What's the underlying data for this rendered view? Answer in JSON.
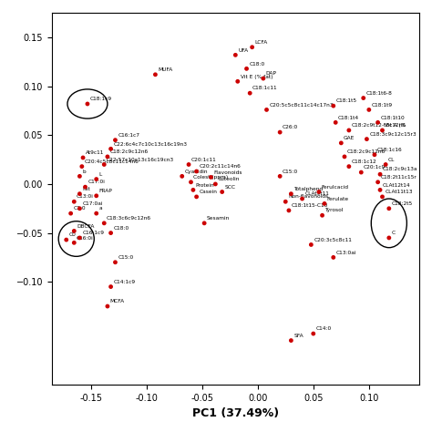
{
  "chart_data": {
    "type": "scatter",
    "xlabel": "PC1 (37.49%)",
    "color": "#cc0000",
    "xlim": [
      -0.185,
      0.145
    ],
    "ylim": [
      -0.205,
      0.175
    ],
    "xticks": [
      {
        "value": -0.15,
        "label": "-0.15"
      },
      {
        "value": -0.1,
        "label": "-0.10"
      },
      {
        "value": -0.05,
        "label": "-0.05"
      },
      {
        "value": 0.0,
        "label": "0.00"
      },
      {
        "value": 0.05,
        "label": "0.05"
      },
      {
        "value": 0.1,
        "label": "0.10"
      }
    ],
    "yticks": [
      {
        "value": -0.1,
        "label": "−0.10"
      },
      {
        "value": -0.05,
        "label": "−0.05"
      },
      {
        "value": 0.0,
        "label": "0.00"
      },
      {
        "value": 0.05,
        "label": "0.05"
      },
      {
        "value": 0.1,
        "label": "0.10"
      },
      {
        "value": 0.15,
        "label": "0.15"
      }
    ],
    "points": [
      {
        "x": -0.153,
        "y": 0.082,
        "label": "C18:1c9"
      },
      {
        "x": -0.128,
        "y": 0.045,
        "label": "C16:1c7"
      },
      {
        "x": -0.132,
        "y": 0.036,
        "label": "C22:6c4c7c10c13c16c19n3"
      },
      {
        "x": -0.135,
        "y": 0.028,
        "label": "C18:2c9c12n6"
      },
      {
        "x": -0.138,
        "y": 0.02,
        "label": "C22:57c10c13c16c19cn3"
      },
      {
        "x": -0.157,
        "y": 0.027,
        "label": "At9c11"
      },
      {
        "x": -0.158,
        "y": 0.018,
        "label": "C20:4c5c8c11c14n6"
      },
      {
        "x": -0.16,
        "y": 0.008,
        "label": "b"
      },
      {
        "x": -0.145,
        "y": 0.005,
        "label": "L"
      },
      {
        "x": -0.155,
        "y": -0.003,
        "label": "C17:0i"
      },
      {
        "x": -0.16,
        "y": -0.01,
        "label": "Fat"
      },
      {
        "x": -0.145,
        "y": -0.012,
        "label": "FRAP"
      },
      {
        "x": -0.165,
        "y": -0.018,
        "label": "C13:0i"
      },
      {
        "x": -0.16,
        "y": -0.025,
        "label": "C17:0ai"
      },
      {
        "x": -0.168,
        "y": -0.03,
        "label": "C2:0"
      },
      {
        "x": -0.145,
        "y": -0.03,
        "label": "a"
      },
      {
        "x": -0.138,
        "y": -0.04,
        "label": "C18:3c6c9c12n6"
      },
      {
        "x": -0.132,
        "y": -0.05,
        "label": "C18:0"
      },
      {
        "x": -0.165,
        "y": -0.048,
        "label": "DBCFA"
      },
      {
        "x": -0.16,
        "y": -0.055,
        "label": "C16:1c9"
      },
      {
        "x": -0.165,
        "y": -0.06,
        "label": "C16:0i"
      },
      {
        "x": -0.172,
        "y": -0.057,
        "label": "C0"
      },
      {
        "x": -0.128,
        "y": -0.08,
        "label": "C15:0"
      },
      {
        "x": -0.132,
        "y": -0.105,
        "label": "C14:1c9"
      },
      {
        "x": -0.135,
        "y": -0.125,
        "label": "MCFA"
      },
      {
        "x": -0.092,
        "y": 0.112,
        "label": "MUFA"
      },
      {
        "x": -0.068,
        "y": 0.008,
        "label": "Cyanidin"
      },
      {
        "x": -0.06,
        "y": 0.002,
        "label": "Colest (ppm)"
      },
      {
        "x": -0.058,
        "y": -0.006,
        "label": "Protein"
      },
      {
        "x": -0.055,
        "y": -0.013,
        "label": "Casein"
      },
      {
        "x": -0.048,
        "y": -0.04,
        "label": "Sesamin"
      },
      {
        "x": -0.062,
        "y": 0.02,
        "label": "C20:1c11"
      },
      {
        "x": -0.055,
        "y": 0.013,
        "label": "C20:2c11c14n6"
      },
      {
        "x": -0.042,
        "y": 0.007,
        "label": "Flavonoids"
      },
      {
        "x": -0.038,
        "y": 0.0,
        "label": "Luteolin"
      },
      {
        "x": -0.032,
        "y": -0.008,
        "label": "SCC"
      },
      {
        "x": -0.02,
        "y": 0.132,
        "label": "UFA"
      },
      {
        "x": -0.005,
        "y": 0.14,
        "label": "LCFA"
      },
      {
        "x": -0.01,
        "y": 0.118,
        "label": "C18:0"
      },
      {
        "x": -0.018,
        "y": 0.105,
        "label": "Vit E (% fat)"
      },
      {
        "x": -0.007,
        "y": 0.093,
        "label": "C18:1c11"
      },
      {
        "x": 0.005,
        "y": 0.108,
        "label": "DAP"
      },
      {
        "x": 0.008,
        "y": 0.076,
        "label": "C20:5c5c8c11c14c17n3"
      },
      {
        "x": 0.02,
        "y": 0.053,
        "label": "C26:0"
      },
      {
        "x": 0.02,
        "y": 0.008,
        "label": "C15:0"
      },
      {
        "x": 0.025,
        "y": -0.018,
        "label": "Non-flavonoids"
      },
      {
        "x": 0.028,
        "y": -0.027,
        "label": "C18:1t15-C10"
      },
      {
        "x": 0.03,
        "y": -0.01,
        "label": "Totalphend"
      },
      {
        "x": 0.04,
        "y": -0.015,
        "label": "CLAt9t11"
      },
      {
        "x": 0.055,
        "y": -0.008,
        "label": "Ferulcacid"
      },
      {
        "x": 0.06,
        "y": -0.02,
        "label": "Ferulate"
      },
      {
        "x": 0.058,
        "y": -0.032,
        "label": "Tyrosol"
      },
      {
        "x": 0.048,
        "y": -0.062,
        "label": "C20:3c5c8c11"
      },
      {
        "x": 0.068,
        "y": -0.075,
        "label": "C13:0ai"
      },
      {
        "x": 0.03,
        "y": -0.16,
        "label": "SFA"
      },
      {
        "x": 0.05,
        "y": -0.153,
        "label": "C14:0"
      },
      {
        "x": 0.068,
        "y": 0.08,
        "label": "C18:1t5"
      },
      {
        "x": 0.07,
        "y": 0.063,
        "label": "C18:1t4"
      },
      {
        "x": 0.082,
        "y": 0.055,
        "label": "C18:2c9t12-t8c12n6"
      },
      {
        "x": 0.075,
        "y": 0.042,
        "label": "GAE"
      },
      {
        "x": 0.078,
        "y": 0.028,
        "label": "C18:2c9c12n6"
      },
      {
        "x": 0.082,
        "y": 0.018,
        "label": "C18:1c12"
      },
      {
        "x": 0.093,
        "y": 0.012,
        "label": "C20:1c9"
      },
      {
        "x": 0.095,
        "y": 0.088,
        "label": "C18:1t6-8"
      },
      {
        "x": 0.1,
        "y": 0.076,
        "label": "C18:1t9"
      },
      {
        "x": 0.108,
        "y": 0.063,
        "label": "C18:1t10"
      },
      {
        "x": 0.112,
        "y": 0.055,
        "label": "Vit A (%"
      },
      {
        "x": 0.098,
        "y": 0.046,
        "label": "C18:3c9c12c15r3"
      },
      {
        "x": 0.105,
        "y": 0.03,
        "label": "C18:1c16"
      },
      {
        "x": 0.115,
        "y": 0.02,
        "label": "CL"
      },
      {
        "x": 0.11,
        "y": 0.01,
        "label": "C18:2c9c13a"
      },
      {
        "x": 0.108,
        "y": 0.002,
        "label": "C18:2t11c15r"
      },
      {
        "x": 0.11,
        "y": -0.006,
        "label": "CLAt12t14"
      },
      {
        "x": 0.112,
        "y": -0.013,
        "label": "CLAt11t13"
      },
      {
        "x": 0.118,
        "y": -0.025,
        "label": "C18:2t5"
      },
      {
        "x": 0.118,
        "y": -0.055,
        "label": "C"
      }
    ],
    "ellipses": [
      {
        "cx": -0.153,
        "cy": 0.082,
        "rx": 0.018,
        "ry": 0.015
      },
      {
        "cx": -0.163,
        "cy": -0.056,
        "rx": 0.016,
        "ry": 0.018
      },
      {
        "cx": 0.118,
        "cy": -0.04,
        "rx": 0.016,
        "ry": 0.025
      }
    ],
    "grid": false
  }
}
